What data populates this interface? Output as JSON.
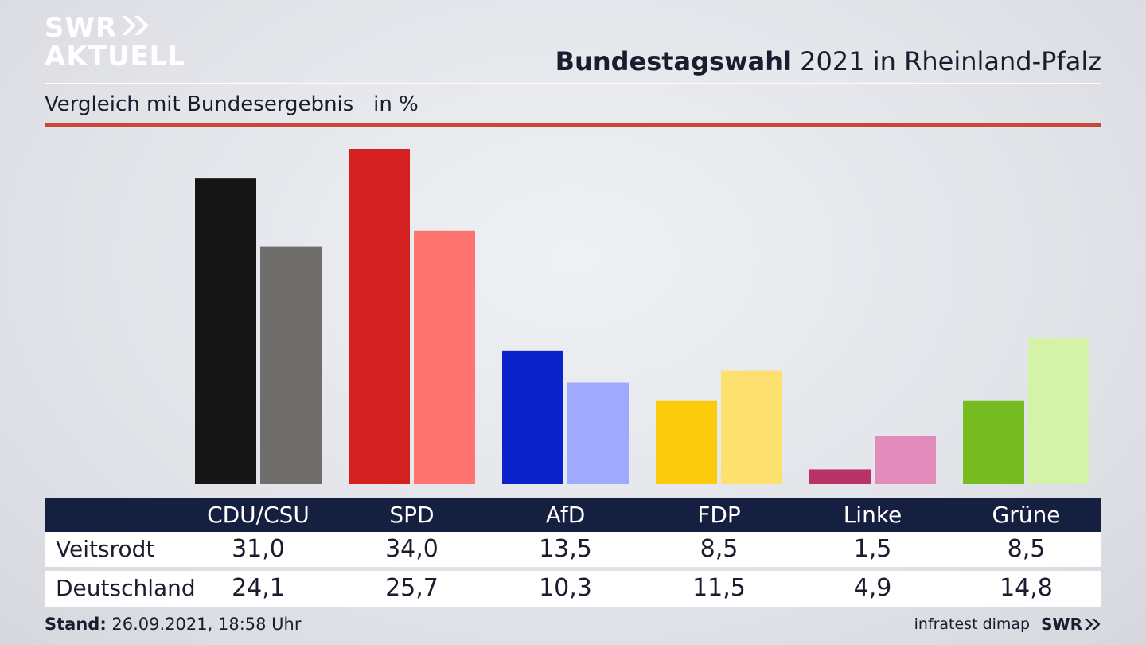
{
  "logo": {
    "line1": "SWR",
    "line2": "AKTUELL"
  },
  "header": {
    "title_bold": "Bundestagswahl",
    "title_rest": " 2021 in Rheinland-Pfalz"
  },
  "subtitle": "Vergleich mit Bundesergebnis   in %",
  "chart_data": {
    "type": "bar",
    "categories": [
      "CDU/CSU",
      "SPD",
      "AfD",
      "FDP",
      "Linke",
      "Grüne"
    ],
    "series": [
      {
        "name": "Veitsrodt",
        "values": [
          31.0,
          34.0,
          13.5,
          8.5,
          1.5,
          8.5
        ],
        "colors": [
          "#151515",
          "#d42020",
          "#0a22c8",
          "#fccb0c",
          "#b8336a",
          "#76bc20"
        ]
      },
      {
        "name": "Deutschland",
        "values": [
          24.1,
          25.7,
          10.3,
          11.5,
          4.9,
          14.8
        ],
        "colors": [
          "#6f6e6c",
          "#fd7470",
          "#9faafd",
          "#fde070",
          "#e18cba",
          "#d4f2a8"
        ]
      }
    ],
    "display_values": {
      "Veitsrodt": [
        "31,0",
        "34,0",
        "13,5",
        "8,5",
        "1,5",
        "8,5"
      ],
      "Deutschland": [
        "24,1",
        "25,7",
        "10,3",
        "11,5",
        "4,9",
        "14,8"
      ]
    },
    "ylim": [
      0,
      34
    ]
  },
  "footer": {
    "stand_label": "Stand:",
    "stand_value": " 26.09.2021, 18:58 Uhr",
    "source": "infratest dimap",
    "brand": "SWR"
  }
}
